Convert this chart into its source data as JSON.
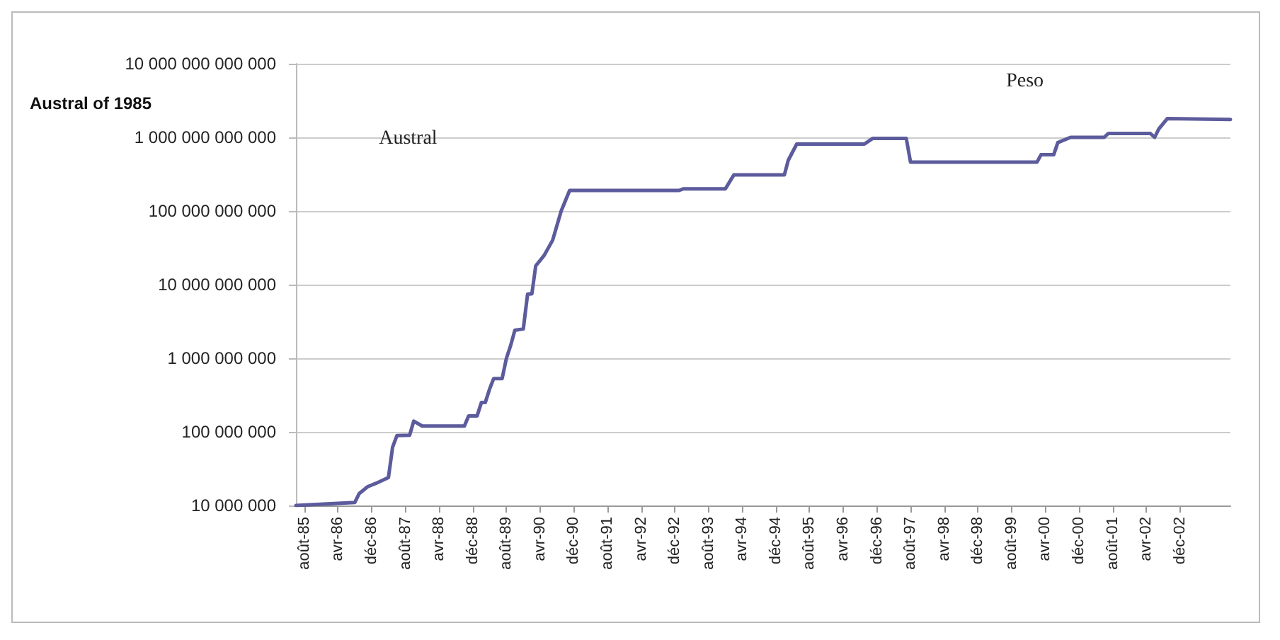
{
  "chart_data": {
    "type": "line",
    "ylabel": "Austral of 1985",
    "x": [
      "1985-06",
      "1986-08",
      "1986-09",
      "1986-11",
      "1987-01",
      "1987-04",
      "1987-05",
      "1987-06",
      "1987-09",
      "1987-10",
      "1987-12",
      "1988-10",
      "1988-11",
      "1989-01",
      "1989-02",
      "1989-03",
      "1989-04",
      "1989-05",
      "1989-07",
      "1989-08",
      "1989-09",
      "1989-10",
      "1989-12",
      "1990-01",
      "1990-02",
      "1990-03",
      "1990-05",
      "1990-07",
      "1990-09",
      "1990-11",
      "1993-01",
      "1993-02",
      "1993-12",
      "1994-02",
      "1995-02",
      "1995-03",
      "1995-05",
      "1996-09",
      "1996-11",
      "1997-07",
      "1997-08",
      "2000-02",
      "2000-03",
      "2000-06",
      "2000-07",
      "2000-10",
      "2001-06",
      "2001-07",
      "2002-05",
      "2002-06",
      "2002-07",
      "2002-09",
      "2003-12"
    ],
    "series": [
      {
        "color": "#5c5b9c",
        "values": [
          10000000.0,
          11000000.0,
          14500000.0,
          18000000.0,
          20000000.0,
          24000000.0,
          62000000.0,
          89000000.0,
          90000000.0,
          140000000.0,
          120000000.0,
          120000000.0,
          165000000.0,
          165000000.0,
          250000000.0,
          250000000.0,
          380000000.0,
          530000000.0,
          530000000.0,
          1000000000.0,
          1500000000.0,
          2400000000.0,
          2500000000.0,
          7400000000.0,
          7500000000.0,
          18000000000.0,
          25000000000.0,
          40000000000.0,
          100000000000.0,
          190000000000.0,
          190000000000.0,
          200000000000.0,
          200000000000.0,
          310000000000.0,
          310000000000.0,
          490000000000.0,
          810000000000.0,
          810000000000.0,
          970000000000.0,
          970000000000.0,
          460000000000.0,
          460000000000.0,
          580000000000.0,
          580000000000.0,
          850000000000.0,
          1000000000000.0,
          1000000000000.0,
          1130000000000.0,
          1130000000000.0,
          1000000000000.0,
          1300000000000.0,
          1800000000000.0,
          1750000000000.0
        ]
      }
    ],
    "log": true,
    "grid": "y",
    "marker": "none",
    "line_style": "solid",
    "xlim": [
      "1985-06",
      "2003-12"
    ],
    "xticks": [
      {
        "value": "1985-08",
        "label": "août-85"
      },
      {
        "value": "1986-04",
        "label": "avr-86"
      },
      {
        "value": "1986-12",
        "label": "déc-86"
      },
      {
        "value": "1987-08",
        "label": "août-87"
      },
      {
        "value": "1988-04",
        "label": "avr-88"
      },
      {
        "value": "1988-12",
        "label": "déc-88"
      },
      {
        "value": "1989-08",
        "label": "août-89"
      },
      {
        "value": "1990-04",
        "label": "avr-90"
      },
      {
        "value": "1990-12",
        "label": "déc-90"
      },
      {
        "value": "1991-08",
        "label": "août-91"
      },
      {
        "value": "1992-04",
        "label": "avr-92"
      },
      {
        "value": "1992-12",
        "label": "déc-92"
      },
      {
        "value": "1993-08",
        "label": "août-93"
      },
      {
        "value": "1994-04",
        "label": "avr-94"
      },
      {
        "value": "1994-12",
        "label": "déc-94"
      },
      {
        "value": "1995-08",
        "label": "août-95"
      },
      {
        "value": "1996-04",
        "label": "avr-96"
      },
      {
        "value": "1996-12",
        "label": "déc-96"
      },
      {
        "value": "1997-08",
        "label": "août-97"
      },
      {
        "value": "1998-04",
        "label": "avr-98"
      },
      {
        "value": "1998-12",
        "label": "déc-98"
      },
      {
        "value": "1999-08",
        "label": "août-99"
      },
      {
        "value": "2000-04",
        "label": "avr-00"
      },
      {
        "value": "2000-12",
        "label": "déc-00"
      },
      {
        "value": "2001-08",
        "label": "août-01"
      },
      {
        "value": "2002-04",
        "label": "avr-02"
      },
      {
        "value": "2002-12",
        "label": "déc-02"
      }
    ],
    "ylim": [
      10000000.0,
      10000000000000.0
    ],
    "yticks": [
      {
        "value": 10000000.0,
        "label": "10 000 000"
      },
      {
        "value": 100000000.0,
        "label": "100 000 000"
      },
      {
        "value": 1000000000.0,
        "label": "1 000 000 000"
      },
      {
        "value": 10000000000.0,
        "label": "10 000 000 000"
      },
      {
        "value": 100000000000.0,
        "label": "100 000 000 000"
      },
      {
        "value": 1000000000000.0,
        "label": "1 000 000 000 000"
      },
      {
        "value": 10000000000000.0,
        "label": "10 000 000 000 000"
      }
    ],
    "annotations": [
      "Austral",
      "Peso"
    ]
  }
}
